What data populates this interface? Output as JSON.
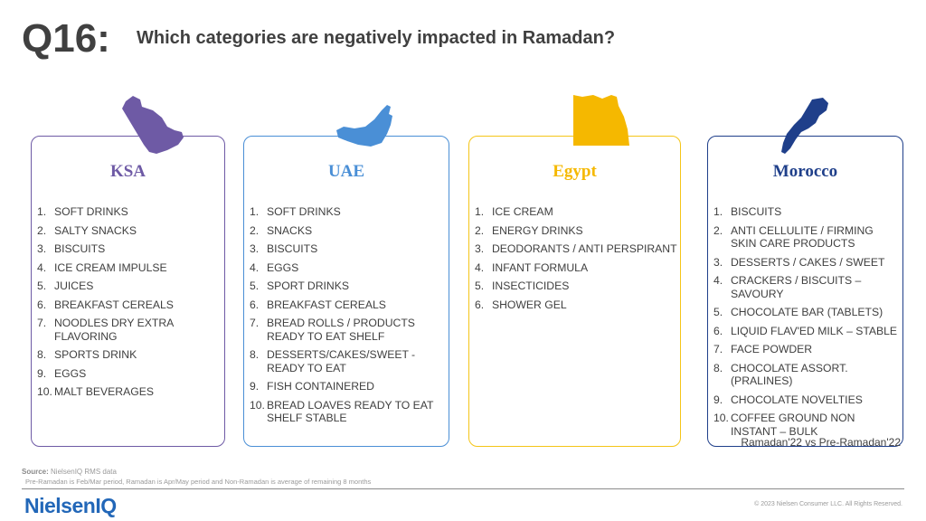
{
  "header": {
    "question_number": "Q16:",
    "question_text": "Which categories are negatively impacted in Ramadan?"
  },
  "markets": [
    {
      "name": "KSA",
      "color": "#6e5aa5",
      "icon": "saudi-arabia-map-icon",
      "items": [
        "SOFT DRINKS",
        "SALTY SNACKS",
        "BISCUITS",
        "ICE CREAM IMPULSE",
        "JUICES",
        "BREAKFAST CEREALS",
        "NOODLES DRY EXTRA FLAVORING",
        "SPORTS DRINK",
        "EGGS",
        "MALT BEVERAGES"
      ]
    },
    {
      "name": "UAE",
      "color": "#4a8fd6",
      "icon": "uae-map-icon",
      "items": [
        "SOFT DRINKS",
        "SNACKS",
        "BISCUITS",
        "EGGS",
        "SPORT DRINKS",
        "BREAKFAST CEREALS",
        "BREAD ROLLS / PRODUCTS READY TO EAT SHELF",
        "DESSERTS/CAKES/SWEET - READY TO EAT",
        "FISH CONTAINERED",
        "BREAD LOAVES READY TO EAT SHELF STABLE"
      ]
    },
    {
      "name": "Egypt",
      "color": "#f5b800",
      "icon": "egypt-map-icon",
      "items": [
        "ICE CREAM",
        "ENERGY DRINKS",
        "DEODORANTS / ANTI PERSPIRANT",
        "INFANT FORMULA",
        "INSECTICIDES",
        "SHOWER GEL"
      ]
    },
    {
      "name": "Morocco",
      "color": "#1f3f8a",
      "icon": "morocco-map-icon",
      "items": [
        "BISCUITS",
        "ANTI CELLULITE  / FIRMING SKIN CARE PRODUCTS",
        "DESSERTS / CAKES / SWEET",
        "CRACKERS / BISCUITS – SAVOURY",
        "CHOCOLATE BAR (TABLETS)",
        "LIQUID FLAV'ED MILK – STABLE",
        "FACE POWDER",
        "CHOCOLATE ASSORT. (PRALINES)",
        "CHOCOLATE NOVELTIES",
        "COFFEE GROUND NON INSTANT  – BULK"
      ]
    }
  ],
  "comparison_note": "Ramadan'22 vs Pre-Ramadan'22",
  "footer": {
    "source_label": "Source:",
    "source_text": "NielsenIQ RMS data",
    "period_note": "Pre-Ramadan  is Feb/Mar period, Ramadan is Apr/May period and Non-Ramadan  is average of remaining  8 months",
    "logo_text": "NielsenIQ",
    "copyright": "© 2023 Nielsen Consumer LLC. All Rights Reserved."
  }
}
